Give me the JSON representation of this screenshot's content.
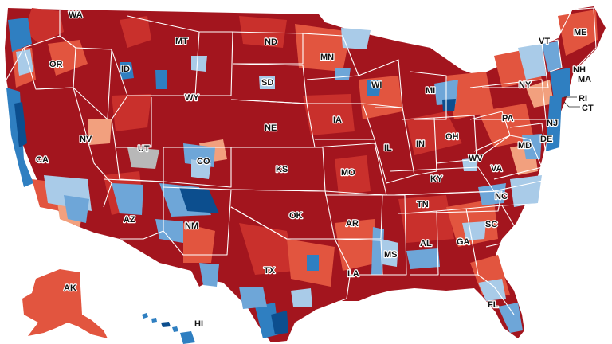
{
  "map": {
    "colors": {
      "strong_r": "#a3151e",
      "r": "#c9302c",
      "lean_r": "#e2553f",
      "tilt_r": "#f2a07e",
      "tilt_d": "#a9cbe8",
      "lean_d": "#6ea6d8",
      "d": "#2f7fc1",
      "strong_d": "#0c4e8e",
      "gray": "#b8b8b8",
      "water": "#ffffff"
    },
    "labels": [
      {
        "id": "wa",
        "text": "WA"
      },
      {
        "id": "or",
        "text": "OR"
      },
      {
        "id": "ca",
        "text": "CA"
      },
      {
        "id": "nv",
        "text": "NV"
      },
      {
        "id": "id",
        "text": "ID"
      },
      {
        "id": "mt",
        "text": "MT"
      },
      {
        "id": "wy",
        "text": "WY"
      },
      {
        "id": "ut",
        "text": "UT"
      },
      {
        "id": "az",
        "text": "AZ"
      },
      {
        "id": "co",
        "text": "CO"
      },
      {
        "id": "nm",
        "text": "NM"
      },
      {
        "id": "nd",
        "text": "ND"
      },
      {
        "id": "sd",
        "text": "SD"
      },
      {
        "id": "ne",
        "text": "NE"
      },
      {
        "id": "ks",
        "text": "KS"
      },
      {
        "id": "ok",
        "text": "OK"
      },
      {
        "id": "tx",
        "text": "TX"
      },
      {
        "id": "mn",
        "text": "MN"
      },
      {
        "id": "ia",
        "text": "IA"
      },
      {
        "id": "mo",
        "text": "MO"
      },
      {
        "id": "ar",
        "text": "AR"
      },
      {
        "id": "la",
        "text": "LA"
      },
      {
        "id": "wi",
        "text": "WI"
      },
      {
        "id": "il",
        "text": "IL"
      },
      {
        "id": "ms",
        "text": "MS"
      },
      {
        "id": "mi",
        "text": "MI"
      },
      {
        "id": "in",
        "text": "IN"
      },
      {
        "id": "ky",
        "text": "KY"
      },
      {
        "id": "tn",
        "text": "TN"
      },
      {
        "id": "al",
        "text": "AL"
      },
      {
        "id": "oh",
        "text": "OH"
      },
      {
        "id": "ga",
        "text": "GA"
      },
      {
        "id": "fl",
        "text": "FL"
      },
      {
        "id": "sc",
        "text": "SC"
      },
      {
        "id": "nc",
        "text": "NC"
      },
      {
        "id": "va",
        "text": "VA"
      },
      {
        "id": "wv",
        "text": "WV"
      },
      {
        "id": "pa",
        "text": "PA"
      },
      {
        "id": "md",
        "text": "MD"
      },
      {
        "id": "de",
        "text": "DE"
      },
      {
        "id": "nj",
        "text": "NJ"
      },
      {
        "id": "ny",
        "text": "NY"
      },
      {
        "id": "ct",
        "text": "CT"
      },
      {
        "id": "ri",
        "text": "RI"
      },
      {
        "id": "ma",
        "text": "MA"
      },
      {
        "id": "vt",
        "text": "VT"
      },
      {
        "id": "nh",
        "text": "NH"
      },
      {
        "id": "me",
        "text": "ME"
      },
      {
        "id": "ak",
        "text": "AK"
      },
      {
        "id": "hi",
        "text": "HI"
      }
    ]
  }
}
